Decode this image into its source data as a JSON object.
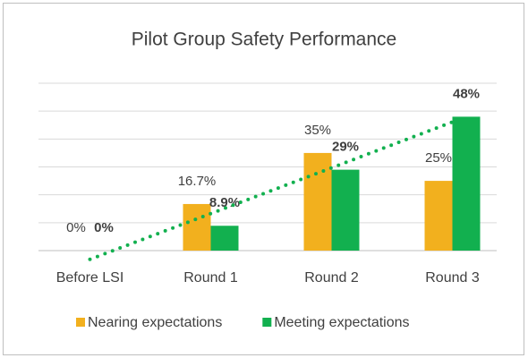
{
  "chart_data": {
    "type": "bar",
    "title": "Pilot Group Safety Performance",
    "categories": [
      "Before LSI",
      "Round 1",
      "Round 2",
      "Round 3"
    ],
    "series": [
      {
        "name": "Nearing expectations",
        "color": "#f2b01e",
        "values": [
          0,
          16.7,
          35,
          25
        ],
        "value_labels": [
          "0%",
          "16.7%",
          "35%",
          "25%"
        ],
        "label_bold": false
      },
      {
        "name": "Meeting expectations",
        "color": "#12b04f",
        "values": [
          0,
          8.9,
          29,
          48
        ],
        "value_labels": [
          "0%",
          "8.9%",
          "29%",
          "48%"
        ],
        "label_bold": true,
        "trendline": "linear"
      }
    ],
    "ylim": [
      0,
      60
    ],
    "yticks": [
      0,
      10,
      20,
      30,
      40,
      50,
      60
    ],
    "grid": true,
    "legend": "bottom"
  }
}
